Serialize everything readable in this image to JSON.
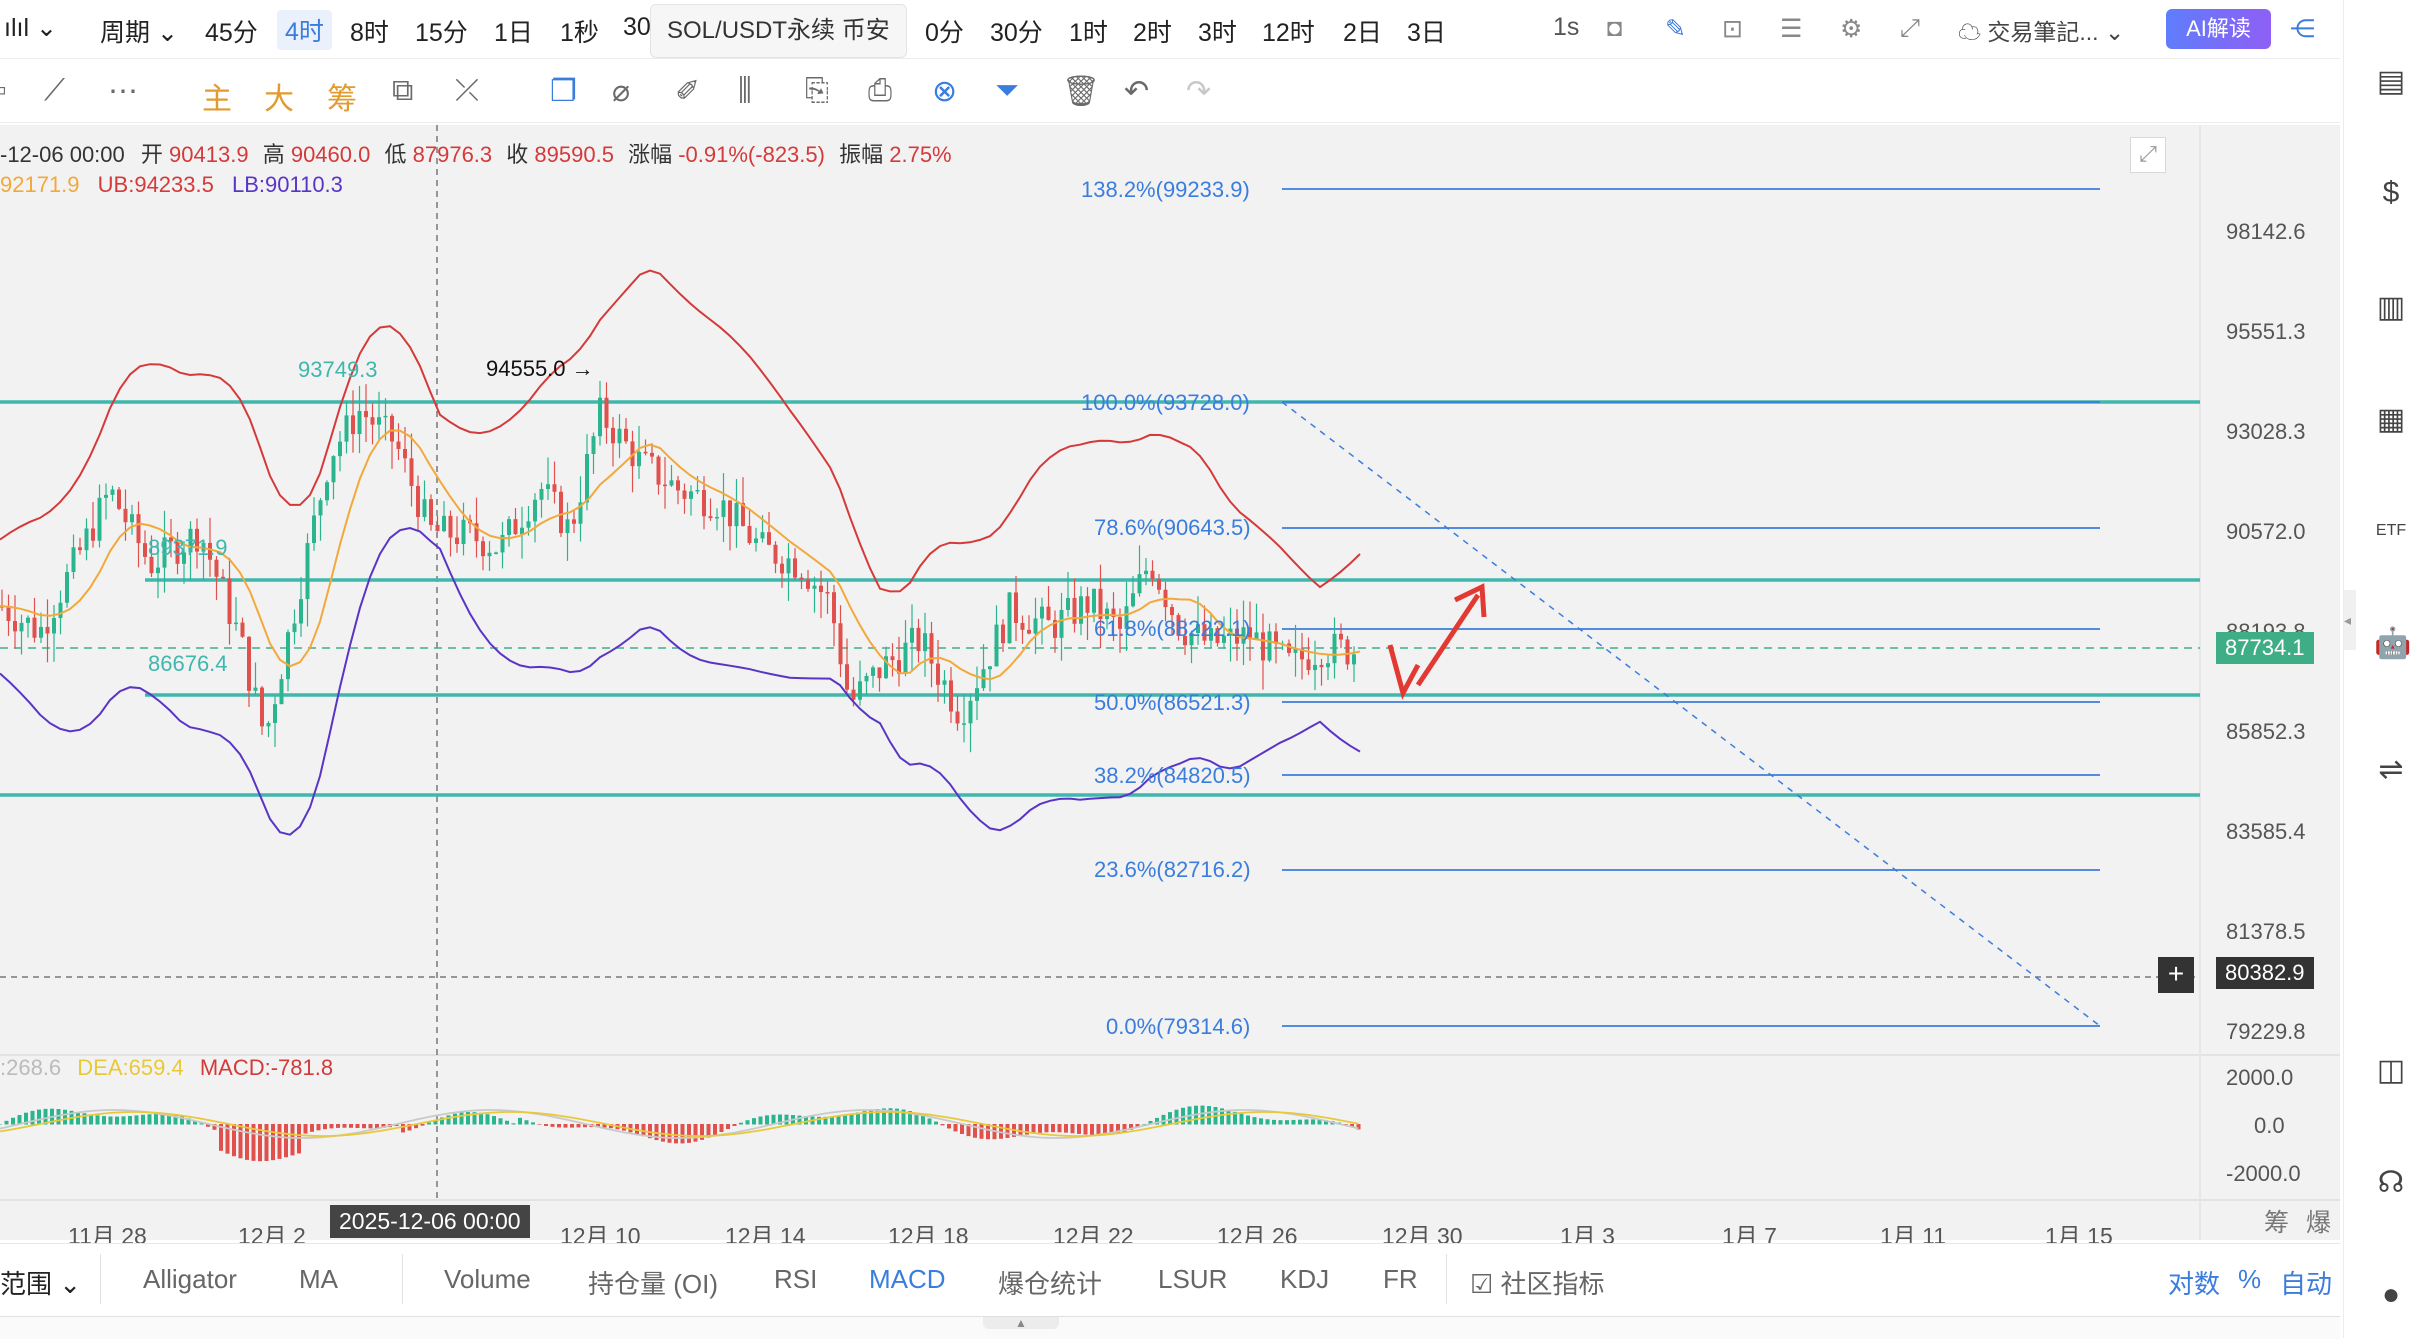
{
  "topbar": {
    "chart_type_icon": "candlestick-icon",
    "period_label": "周期",
    "timeframes": [
      "45分",
      "4时",
      "8时",
      "15分",
      "1日",
      "1秒",
      "30"
    ],
    "active_timeframe": "4时",
    "symbol_tooltip": "SOL/USDT永续 币安",
    "timeframes_right": [
      "0分",
      "30分",
      "1时",
      "2时",
      "3时",
      "12时",
      "2日",
      "3日"
    ],
    "seconds_label": "1s",
    "notes_label": "交易筆記...",
    "ai_button": "AI解读"
  },
  "drawbar": {
    "overlays": [
      "主",
      "大",
      "筹"
    ]
  },
  "ohlc": {
    "date": "-12-06 00:00",
    "open_label": "开",
    "open": "90413.9",
    "high_label": "高",
    "high": "90460.0",
    "low_label": "低",
    "low": "87976.3",
    "close_label": "收",
    "close": "89590.5",
    "change_label": "涨幅",
    "change": "-0.91%(-823.5)",
    "amp_label": "振幅",
    "amp": "2.75%"
  },
  "boll": {
    "mid": "92171.9",
    "ub": "UB:94233.5",
    "lb": "LB:90110.3"
  },
  "annotations": {
    "peak1": "93749.3",
    "peak2": "94555.0 →",
    "level1": "89371.9",
    "level2": "86676.4"
  },
  "fib_levels": [
    {
      "label": "138.2%(99233.9)"
    },
    {
      "label": "100.0%(93728.0)"
    },
    {
      "label": "78.6%(90643.5)"
    },
    {
      "label": "61.8%(88222.1)"
    },
    {
      "label": "50.0%(86521.3)"
    },
    {
      "label": "38.2%(84820.5)"
    },
    {
      "label": "23.6%(82716.2)"
    },
    {
      "label": "0.0%(79314.6)"
    }
  ],
  "y_axis": [
    "98142.6",
    "95551.3",
    "93028.3",
    "90572.0",
    "88193.8",
    "85852.3",
    "83585.4",
    "81378.5",
    "79229.8"
  ],
  "current_price": "87734.1",
  "crosshair_price": "80382.9",
  "macd": {
    "dif": ":268.6",
    "dea": "DEA:659.4",
    "macd": "MACD:-781.8",
    "axis": [
      "2000.0",
      "0.0",
      "-2000.0"
    ]
  },
  "x_axis": [
    "11月 28",
    "12月 2",
    "12月 10",
    "12月 14",
    "12月 18",
    "12月 22",
    "12月 26",
    "12月 30",
    "1月 3",
    "1月 7",
    "1月 11",
    "1月 15"
  ],
  "crosshair_date": "2025-12-06 00:00",
  "axis_corner": [
    "筹",
    "爆"
  ],
  "indicators": {
    "range_label": "范围",
    "items": [
      "Alligator",
      "MA",
      "Volume",
      "持仓量 (OI)",
      "RSI",
      "MACD",
      "爆仓统计",
      "LSUR",
      "KDJ",
      "FR"
    ],
    "active": "MACD",
    "community": "社区指标",
    "scale_log": "对数",
    "scale_pct": "%",
    "scale_auto": "自动"
  },
  "colors": {
    "accent": "#3b7ddd",
    "up": "#2bb58f",
    "down": "#e0504c",
    "teal_line": "#3fb7ad",
    "fib": "#3b7ddd",
    "boll_mid": "#f2a93b",
    "boll_upper": "#d43a3a",
    "boll_lower": "#5a35c5",
    "arrow": "#e23a33"
  }
}
